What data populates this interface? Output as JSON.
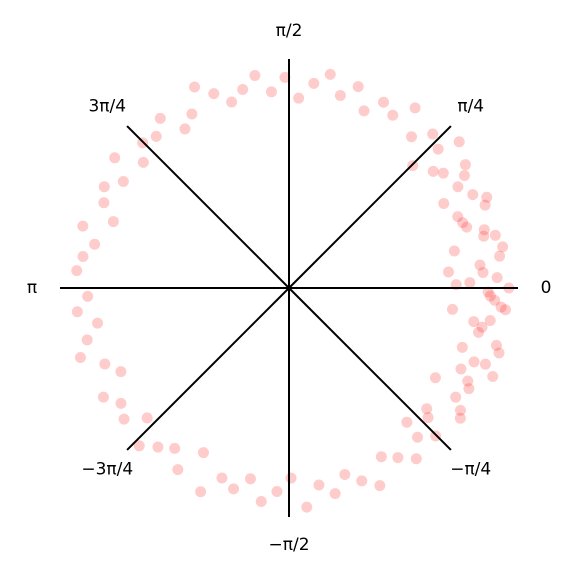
{
  "chart_data": {
    "type": "scatter",
    "polar": true,
    "color": "#ff0000",
    "opacity": 0.2,
    "rlim": [
      0,
      1
    ],
    "xticks": [
      0,
      {
        "value": 0.785398,
        "label": "π/4"
      },
      {
        "value": 1.570796,
        "label": "π/2"
      },
      {
        "value": 2.356194,
        "label": "3π/4"
      },
      {
        "value": 3.141593,
        "label": "π"
      },
      {
        "value": -2.356194,
        "label": "−3π/4"
      },
      {
        "value": -1.570796,
        "label": "−π/2"
      },
      {
        "value": -0.785398,
        "label": "−π/4"
      }
    ],
    "x": [
      -3.1,
      -3.03,
      -2.96,
      -2.89,
      -2.82,
      -2.75,
      -2.68,
      -2.61,
      -2.54,
      -2.47,
      -2.4,
      -2.33,
      -2.26,
      -2.19,
      -2.12,
      -2.05,
      -1.98,
      -1.91,
      -1.84,
      -1.77,
      -1.7,
      -1.63,
      -1.56,
      -1.49,
      -1.42,
      -1.35,
      -1.28,
      -1.21,
      -1.14,
      -1.07,
      -1.0,
      -0.93,
      -0.86,
      -0.79,
      -0.72,
      -0.65,
      -0.58,
      -0.51,
      -0.44,
      -0.37,
      -0.3,
      -0.23,
      -0.16,
      -0.09,
      -0.02,
      0.05,
      0.12,
      0.19,
      0.26,
      0.33,
      0.4,
      0.47,
      0.54,
      0.61,
      0.68,
      0.75,
      0.82,
      0.89,
      0.96,
      1.03,
      1.1,
      1.17,
      1.24,
      1.31,
      1.38,
      1.45,
      1.52,
      1.59,
      1.66,
      1.73,
      1.8,
      1.87,
      1.94,
      2.01,
      2.08,
      2.15,
      2.22,
      2.29,
      2.36,
      2.43,
      2.5,
      2.57,
      2.64,
      2.71,
      2.78,
      2.85,
      2.92,
      2.99,
      3.06,
      -0.85,
      -0.75,
      -0.62,
      -0.55,
      -0.48,
      -0.41,
      -0.33,
      -0.27,
      -0.2,
      -0.13,
      -0.06,
      0.0,
      0.03,
      0.08,
      0.15,
      0.22,
      0.29,
      0.36,
      0.43,
      0.5,
      0.57,
      0.64,
      0.71,
      0.78,
      -0.38,
      -0.18,
      0.1,
      0.25,
      0.4,
      -0.1,
      0.02,
      -0.04
    ],
    "values": [
      0.88,
      0.93,
      0.85,
      0.91,
      0.96,
      0.87,
      0.82,
      0.94,
      0.89,
      0.92,
      0.84,
      0.95,
      0.9,
      0.86,
      0.93,
      0.81,
      0.97,
      0.88,
      0.91,
      0.85,
      0.94,
      0.89,
      0.83,
      0.96,
      0.87,
      0.92,
      0.85,
      0.9,
      0.95,
      0.84,
      0.88,
      0.93,
      0.86,
      0.91,
      0.8,
      0.94,
      0.87,
      0.9,
      0.83,
      0.92,
      0.96,
      0.85,
      0.89,
      0.93,
      0.87,
      0.91,
      0.84,
      0.95,
      0.88,
      0.82,
      0.93,
      0.9,
      0.86,
      0.94,
      0.81,
      0.89,
      0.92,
      0.85,
      0.96,
      0.88,
      0.91,
      0.84,
      0.93,
      0.87,
      0.95,
      0.9,
      0.83,
      0.92,
      0.86,
      0.94,
      0.89,
      0.85,
      0.91,
      0.97,
      0.87,
      0.83,
      0.93,
      0.88,
      0.9,
      0.84,
      0.95,
      0.86,
      0.92,
      0.89,
      0.82,
      0.94,
      0.87,
      0.91,
      0.93,
      0.78,
      0.83,
      0.92,
      0.75,
      0.88,
      0.97,
      0.8,
      0.94,
      0.86,
      0.72,
      0.9,
      0.96,
      0.79,
      0.85,
      0.93,
      0.74,
      0.89,
      0.81,
      0.95,
      0.77,
      0.91,
      0.84,
      0.98,
      0.76,
      0.87,
      0.82,
      0.7,
      0.93,
      0.8,
      0.95,
      0.73,
      0.88
    ]
  }
}
